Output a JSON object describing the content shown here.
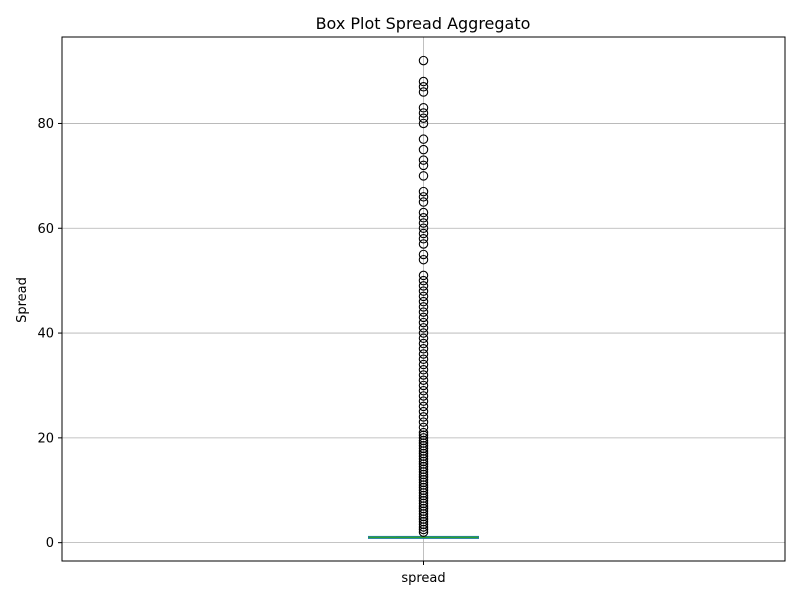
{
  "chart_data": {
    "type": "box",
    "title": "Box Plot Spread Aggregato",
    "xlabel": "",
    "ylabel": "Spread",
    "categories": [
      "spread"
    ],
    "ylim": [
      -3.5,
      96.5
    ],
    "yticks": [
      0,
      20,
      40,
      60,
      80
    ],
    "grid": true,
    "box": {
      "q1": 1,
      "median": 1,
      "q3": 1,
      "whisker_low": 1,
      "whisker_high": 1
    },
    "outliers": [
      2,
      2.5,
      3,
      3.5,
      4,
      4.5,
      5,
      5.5,
      6,
      6.5,
      7,
      7.5,
      8,
      8.5,
      9,
      9.5,
      10,
      10.5,
      11,
      11.5,
      12,
      12.5,
      13,
      13.5,
      14,
      14.5,
      15,
      15.5,
      16,
      16.5,
      17,
      17.5,
      18,
      18.5,
      19,
      19.5,
      20,
      20.5,
      21,
      22,
      23,
      24,
      25,
      26,
      27,
      28,
      29,
      30,
      31,
      32,
      33,
      34,
      35,
      36,
      37,
      38,
      39,
      40,
      41,
      42,
      43,
      44,
      45,
      46,
      47,
      48,
      49,
      50,
      51,
      54,
      55,
      57,
      58,
      59,
      60,
      61,
      62,
      63,
      65,
      66,
      67,
      70,
      72,
      73,
      75,
      77,
      80,
      81,
      82,
      83,
      86,
      87,
      88,
      92
    ],
    "colors": {
      "box": "#1f77b4",
      "median": "#2ca02c",
      "grid": "#b0b0b0",
      "outlier_edge": "#000000"
    }
  }
}
